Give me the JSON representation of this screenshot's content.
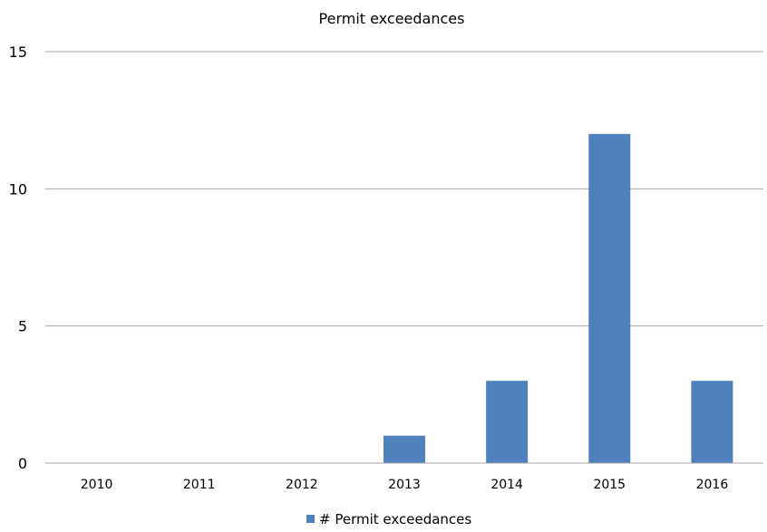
{
  "chart_data": {
    "type": "bar",
    "title": "Permit exceedances",
    "categories": [
      "2010",
      "2011",
      "2012",
      "2013",
      "2014",
      "2015",
      "2016"
    ],
    "series": [
      {
        "name": "# Permit exceedances",
        "values": [
          0,
          0,
          0,
          1,
          3,
          12,
          3
        ],
        "color": "#4f81bd"
      }
    ],
    "ylim": [
      0,
      15
    ],
    "yticks": [
      "0",
      "5",
      "10",
      "15"
    ],
    "grid": true,
    "legend": "bottom"
  }
}
